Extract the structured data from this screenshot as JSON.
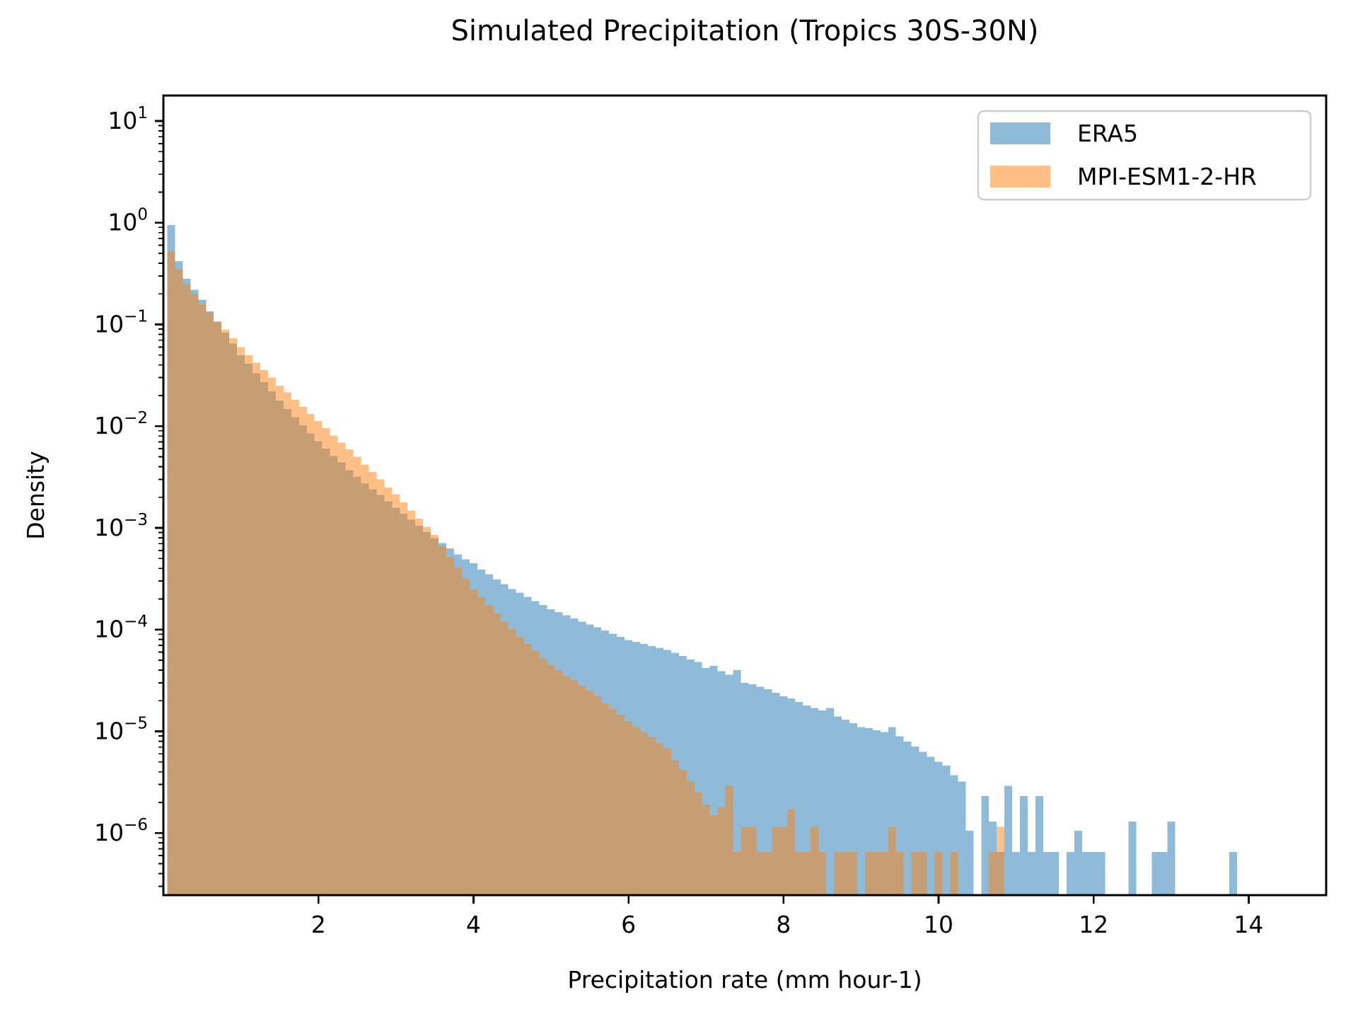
{
  "figure": {
    "background": "#ffffff"
  },
  "chart_data": {
    "type": "bar",
    "subtype": "overlaid-histogram",
    "title": "Simulated Precipitation (Tropics 30S-30N)",
    "xlabel": "Precipitation rate (mm hour-1)",
    "ylabel": "Density",
    "yscale": "log",
    "grid": false,
    "xlim": [
      0,
      15
    ],
    "ylim": [
      2.45e-07,
      17.8
    ],
    "x_major_ticks": [
      2,
      4,
      6,
      8,
      10,
      12,
      14
    ],
    "y_major_tick_exponents": [
      1,
      0,
      -1,
      -2,
      -3,
      -4,
      -5,
      -6
    ],
    "legend_position": "upper right",
    "bin_width": 0.1,
    "bin_start_center": 0.1,
    "series": [
      {
        "name": "ERA5",
        "color": "#1f77b4",
        "fill_opacity": 0.5,
        "densities": [
          0.95,
          0.42,
          0.28,
          0.22,
          0.175,
          0.135,
          0.107,
          0.083,
          0.065,
          0.05,
          0.041,
          0.033,
          0.027,
          0.022,
          0.0178,
          0.0148,
          0.0123,
          0.0102,
          0.0085,
          0.0071,
          0.006,
          0.0051,
          0.0044,
          0.0037,
          0.0032,
          0.00275,
          0.0024,
          0.0021,
          0.00182,
          0.00158,
          0.00138,
          0.0012,
          0.00105,
          0.00091,
          0.00079,
          0.00071,
          0.00063,
          0.00055,
          0.00049,
          0.00045,
          0.00039,
          0.00035,
          0.00031,
          0.00028,
          0.00025,
          0.00023,
          0.00021,
          0.00019,
          0.000174,
          0.000158,
          0.000148,
          0.000138,
          0.000129,
          0.00012,
          0.000112,
          0.000105,
          9.8e-05,
          9.1e-05,
          8.5e-05,
          7.9e-05,
          7.6e-05,
          7.2e-05,
          6.9e-05,
          6.6e-05,
          6.3e-05,
          5.9e-05,
          5.5e-05,
          5.1e-05,
          4.8e-05,
          4.2e-05,
          4.4e-05,
          3.9e-05,
          3.6e-05,
          4e-05,
          3e-05,
          2.9e-05,
          2.75e-05,
          2.6e-05,
          2.4e-05,
          2.2e-05,
          2.1e-05,
          1.95e-05,
          1.8e-05,
          1.7e-05,
          1.6e-05,
          1.7e-05,
          1.4e-05,
          1.3e-05,
          1.2e-05,
          1.1e-05,
          1.07e-05,
          1.02e-05,
          9.8e-06,
          1.1e-05,
          8.9e-06,
          7.9e-06,
          7.1e-06,
          6.3e-06,
          5.6e-06,
          5e-06,
          4.6e-06,
          3.7e-06,
          3.2e-06,
          1.05e-06,
          0,
          2.3e-06,
          1.3e-06,
          6.5e-07,
          2.9e-06,
          6.5e-07,
          2.3e-06,
          6.5e-07,
          2.3e-06,
          6.5e-07,
          6.5e-07,
          0,
          6.5e-07,
          1.05e-06,
          6.5e-07,
          6.5e-07,
          6.5e-07,
          0,
          0,
          0,
          1.3e-06,
          0,
          0,
          6.5e-07,
          6.5e-07,
          1.3e-06,
          0,
          0,
          0,
          0,
          0,
          0,
          0,
          6.5e-07,
          0
        ]
      },
      {
        "name": "MPI-ESM1-2-HR",
        "color": "#ff7f0e",
        "fill_opacity": 0.5,
        "densities": [
          0.52,
          0.35,
          0.25,
          0.2,
          0.158,
          0.131,
          0.107,
          0.089,
          0.073,
          0.06,
          0.05,
          0.042,
          0.0355,
          0.03,
          0.025,
          0.0214,
          0.0182,
          0.0155,
          0.0132,
          0.0112,
          0.00955,
          0.0081,
          0.0069,
          0.0059,
          0.005,
          0.0042,
          0.00355,
          0.003,
          0.0025,
          0.00214,
          0.00178,
          0.00148,
          0.00123,
          0.00102,
          0.00085,
          0.00066,
          0.00052,
          0.00041,
          0.00032,
          0.00025,
          0.00021,
          0.000174,
          0.000145,
          0.00012,
          0.0001,
          8.5e-05,
          7.2e-05,
          6.2e-05,
          5.2e-05,
          4.5e-05,
          4e-05,
          3.5e-05,
          3.2e-05,
          2.8e-05,
          2.5e-05,
          2.2e-05,
          1.9e-05,
          1.66e-05,
          1.45e-05,
          1.26e-05,
          1.1e-05,
          9.8e-06,
          8.7e-06,
          7.6e-06,
          6.8e-06,
          5.2e-06,
          4.2e-06,
          3.2e-06,
          2.5e-06,
          1.9e-06,
          1.5e-06,
          1.8e-06,
          2.9e-06,
          6.5e-07,
          1.15e-06,
          1.15e-06,
          6.5e-07,
          6.5e-07,
          1.15e-06,
          1.15e-06,
          1.7e-06,
          6.5e-07,
          6.5e-07,
          1.15e-06,
          6.5e-07,
          0,
          6.5e-07,
          6.5e-07,
          6.5e-07,
          0,
          6.5e-07,
          6.5e-07,
          6.5e-07,
          1.15e-06,
          6.5e-07,
          0,
          6.5e-07,
          6.5e-07,
          0,
          6.5e-07,
          0,
          6.5e-07,
          0,
          0,
          0,
          0,
          6.5e-07,
          1.15e-06,
          0
        ]
      }
    ]
  }
}
